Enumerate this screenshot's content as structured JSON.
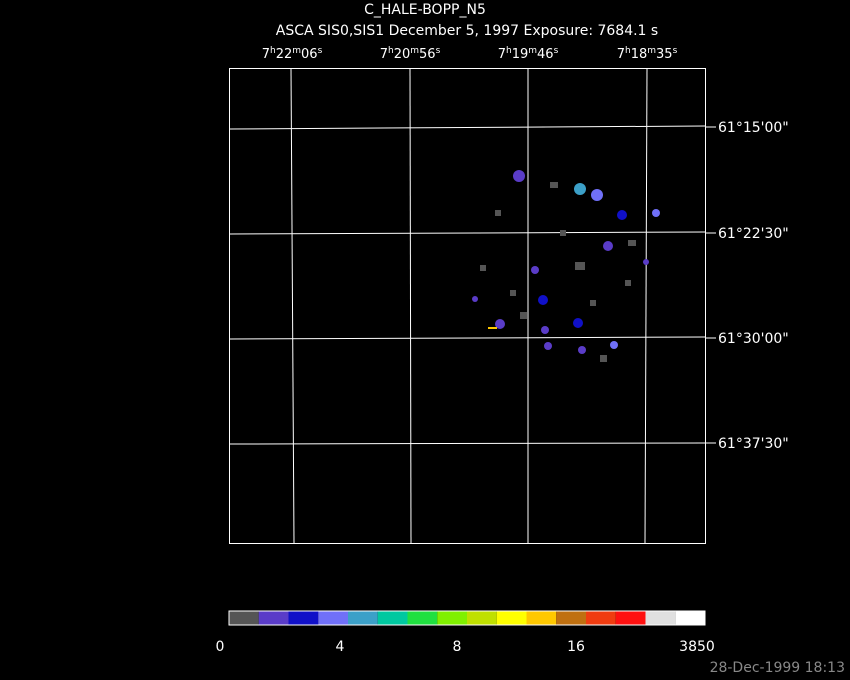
{
  "header": {
    "title": "C_HALE-BOPP_N5",
    "subtitle": "ASCA SIS0,SIS1 December 5, 1997 Exposure: 7684.1 s"
  },
  "ra_labels": [
    [
      "7",
      "h",
      "22",
      "m",
      "06",
      "s"
    ],
    [
      "7",
      "h",
      "20",
      "m",
      "56",
      "s"
    ],
    [
      "7",
      "h",
      "19",
      "m",
      "46",
      "s"
    ],
    [
      "7",
      "h",
      "18",
      "m",
      "35",
      "s"
    ]
  ],
  "dec_labels": [
    "61°15'00\"",
    "61°22'30\"",
    "61°30'00\"",
    "61°37'30\""
  ],
  "colorbar": {
    "colors": [
      "#555555",
      "#5a3cc8",
      "#1010c8",
      "#7070f8",
      "#3ca0c8",
      "#00c8a0",
      "#20e040",
      "#80f000",
      "#c0e000",
      "#ffff00",
      "#ffc800",
      "#c07010",
      "#f03c10",
      "#ff1010",
      "#e0e0e0",
      "#ffffff"
    ],
    "labels": [
      "0",
      "4",
      "8",
      "16",
      "3850"
    ]
  },
  "timestamp": "28-Dec-1999 18:13"
}
